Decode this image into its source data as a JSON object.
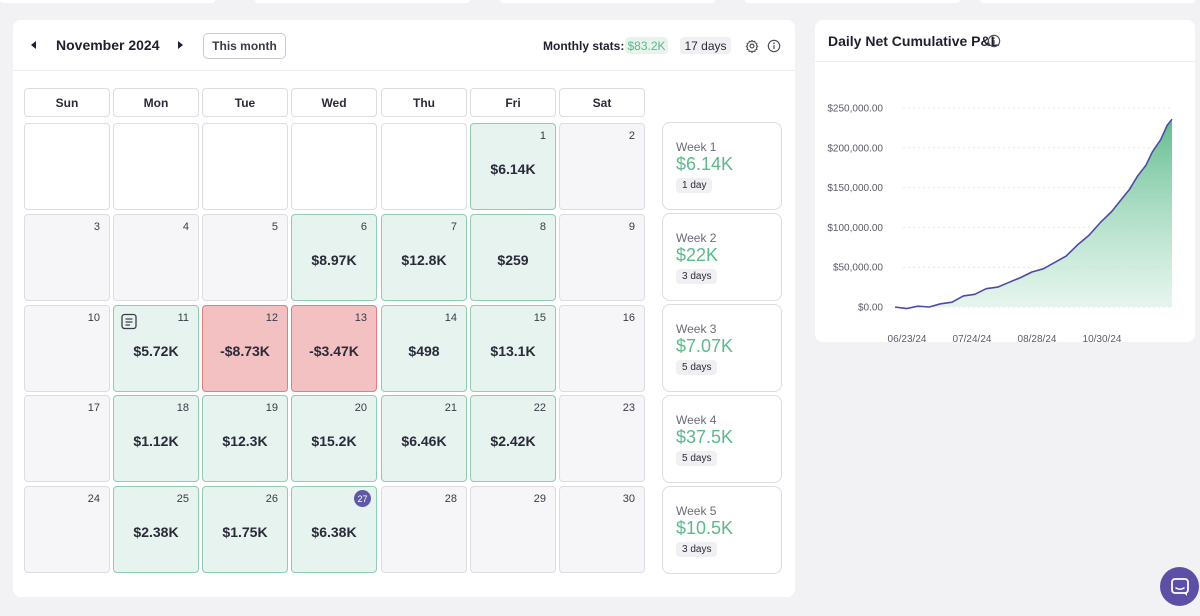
{
  "calendar": {
    "month_title": "November 2024",
    "this_month_label": "This month",
    "stats_label": "Monthly stats:",
    "stats_pnl": "$83.2K",
    "stats_days": "17 days",
    "weekdays": [
      "Sun",
      "Mon",
      "Tue",
      "Wed",
      "Thu",
      "Fri",
      "Sat"
    ],
    "weeks": [
      [
        {
          "day": "",
          "value": "",
          "status": "empty"
        },
        {
          "day": "",
          "value": "",
          "status": "empty"
        },
        {
          "day": "",
          "value": "",
          "status": "empty"
        },
        {
          "day": "",
          "value": "",
          "status": "empty"
        },
        {
          "day": "",
          "value": "",
          "status": "empty"
        },
        {
          "day": "1",
          "value": "$6.14K",
          "status": "positive"
        },
        {
          "day": "2",
          "value": "",
          "status": "none"
        }
      ],
      [
        {
          "day": "3",
          "value": "",
          "status": "none"
        },
        {
          "day": "4",
          "value": "",
          "status": "none"
        },
        {
          "day": "5",
          "value": "",
          "status": "none"
        },
        {
          "day": "6",
          "value": "$8.97K",
          "status": "positive"
        },
        {
          "day": "7",
          "value": "$12.8K",
          "status": "positive"
        },
        {
          "day": "8",
          "value": "$259",
          "status": "positive"
        },
        {
          "day": "9",
          "value": "",
          "status": "none"
        }
      ],
      [
        {
          "day": "10",
          "value": "",
          "status": "none"
        },
        {
          "day": "11",
          "value": "$5.72K",
          "status": "positive",
          "note": true
        },
        {
          "day": "12",
          "value": "-$8.73K",
          "status": "negative"
        },
        {
          "day": "13",
          "value": "-$3.47K",
          "status": "negative"
        },
        {
          "day": "14",
          "value": "$498",
          "status": "positive"
        },
        {
          "day": "15",
          "value": "$13.1K",
          "status": "positive"
        },
        {
          "day": "16",
          "value": "",
          "status": "none"
        }
      ],
      [
        {
          "day": "17",
          "value": "",
          "status": "none"
        },
        {
          "day": "18",
          "value": "$1.12K",
          "status": "positive"
        },
        {
          "day": "19",
          "value": "$12.3K",
          "status": "positive"
        },
        {
          "day": "20",
          "value": "$15.2K",
          "status": "positive"
        },
        {
          "day": "21",
          "value": "$6.46K",
          "status": "positive"
        },
        {
          "day": "22",
          "value": "$2.42K",
          "status": "positive"
        },
        {
          "day": "23",
          "value": "",
          "status": "none"
        }
      ],
      [
        {
          "day": "24",
          "value": "",
          "status": "none"
        },
        {
          "day": "25",
          "value": "$2.38K",
          "status": "positive"
        },
        {
          "day": "26",
          "value": "$1.75K",
          "status": "positive"
        },
        {
          "day": "27",
          "value": "$6.38K",
          "status": "positive",
          "today": true
        },
        {
          "day": "28",
          "value": "",
          "status": "none"
        },
        {
          "day": "29",
          "value": "",
          "status": "none"
        },
        {
          "day": "30",
          "value": "",
          "status": "none"
        }
      ]
    ],
    "week_summaries": [
      {
        "label": "Week 1",
        "value": "$6.14K",
        "days": "1 day"
      },
      {
        "label": "Week 2",
        "value": "$22K",
        "days": "3 days"
      },
      {
        "label": "Week 3",
        "value": "$7.07K",
        "days": "5 days"
      },
      {
        "label": "Week 4",
        "value": "$37.5K",
        "days": "5 days"
      },
      {
        "label": "Week 5",
        "value": "$10.5K",
        "days": "3 days"
      }
    ]
  },
  "chart": {
    "title": "Daily Net Cumulative P&L"
  },
  "chart_data": {
    "type": "area",
    "title": "Daily Net Cumulative P&L",
    "xlabel": "",
    "ylabel": "",
    "y_ticks": [
      "$250,000.00",
      "$200,000.00",
      "$150,000.00",
      "$100,000.00",
      "$50,000.00",
      "$0.00"
    ],
    "y_tick_values": [
      250000,
      200000,
      150000,
      100000,
      50000,
      0
    ],
    "x_ticks": [
      "06/23/24",
      "07/24/24",
      "08/28/24",
      "10/30/24"
    ],
    "ylim": [
      0,
      250000
    ],
    "xlim": [
      "2024-06-10",
      "2024-11-27"
    ],
    "grid": true,
    "series": [
      {
        "x": [
          "2024-06-10",
          "2024-06-17",
          "2024-06-24",
          "2024-07-01",
          "2024-07-08",
          "2024-07-15",
          "2024-07-22",
          "2024-07-29",
          "2024-08-05",
          "2024-08-12",
          "2024-08-19",
          "2024-08-26",
          "2024-09-02",
          "2024-09-09",
          "2024-09-16",
          "2024-09-23",
          "2024-09-30",
          "2024-10-07",
          "2024-10-14",
          "2024-10-21",
          "2024-10-28",
          "2024-11-01",
          "2024-11-06",
          "2024-11-11",
          "2024-11-15",
          "2024-11-20",
          "2024-11-24",
          "2024-11-27"
        ],
        "y": [
          0,
          0,
          1000,
          2000,
          4000,
          8000,
          14000,
          18000,
          23000,
          27000,
          31000,
          39000,
          44000,
          50000,
          56000,
          66000,
          78000,
          92000,
          106000,
          122000,
          138000,
          150000,
          165000,
          180000,
          195000,
          212000,
          228000,
          238000
        ]
      }
    ]
  },
  "colors": {
    "positive": "#5bb98a",
    "negative": "#e07e7e",
    "accent": "#5d4fa6",
    "line": "#4f4ba2"
  },
  "icons": {
    "prev": "caret-left-icon",
    "next": "caret-right-icon",
    "settings": "gear-icon",
    "info": "info-icon",
    "note": "note-icon",
    "chat": "chat-icon"
  }
}
